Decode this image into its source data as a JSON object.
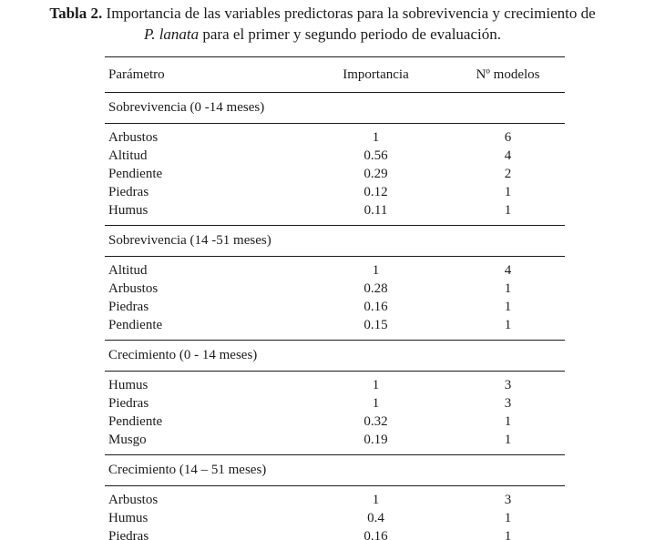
{
  "caption": {
    "label": "Tabla 2.",
    "line1": "Importancia de las variables predictoras para la sobrevivencia y crecimiento de",
    "species": "P. lanata",
    "line2": "para el primer y segundo periodo de evaluación."
  },
  "table": {
    "headers": [
      "Parámetro",
      "Importancia",
      "Nº modelos"
    ],
    "sections": [
      {
        "title": "Sobrevivencia (0 -14 meses)",
        "rows": [
          [
            "Arbustos",
            "1",
            "6"
          ],
          [
            "Altitud",
            "0.56",
            "4"
          ],
          [
            "Pendiente",
            "0.29",
            "2"
          ],
          [
            "Piedras",
            "0.12",
            "1"
          ],
          [
            "Humus",
            "0.11",
            "1"
          ]
        ]
      },
      {
        "title": "Sobrevivencia (14 -51 meses)",
        "rows": [
          [
            "Altitud",
            "1",
            "4"
          ],
          [
            "Arbustos",
            "0.28",
            "1"
          ],
          [
            "Piedras",
            "0.16",
            "1"
          ],
          [
            "Pendiente",
            "0.15",
            "1"
          ]
        ]
      },
      {
        "title": "Crecimiento (0 - 14 meses)",
        "rows": [
          [
            "Humus",
            "1",
            "3"
          ],
          [
            "Piedras",
            "1",
            "3"
          ],
          [
            "Pendiente",
            "0.32",
            "1"
          ],
          [
            "Musgo",
            "0.19",
            "1"
          ]
        ]
      },
      {
        "title": "Crecimiento (14 – 51  meses)",
        "rows": [
          [
            "Arbustos",
            "1",
            "3"
          ],
          [
            "Humus",
            "0.4",
            "1"
          ],
          [
            "Piedras",
            "0.16",
            "1"
          ]
        ]
      }
    ]
  },
  "colors": {
    "text": "#1b1b1b",
    "rule": "#1b1b1b",
    "background": "#ffffff"
  }
}
